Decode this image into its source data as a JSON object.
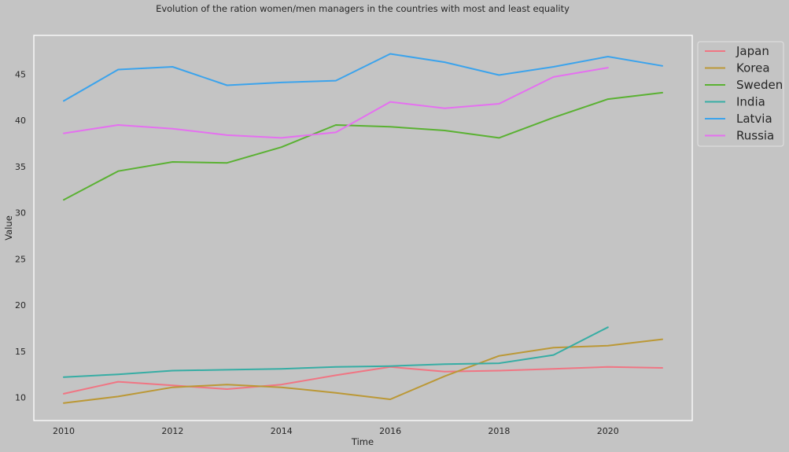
{
  "chart_data": {
    "type": "line",
    "title": "Evolution of the ration women/men managers in the countries with most and least equality",
    "xlabel": "Time",
    "ylabel": "Value",
    "xlim": [
      2009.45,
      2021.55
    ],
    "ylim": [
      7.5,
      49.2
    ],
    "xticks": [
      2010,
      2012,
      2014,
      2016,
      2018,
      2020
    ],
    "yticks": [
      10,
      15,
      20,
      25,
      30,
      35,
      40,
      45
    ],
    "grid": false,
    "legend_position": "outside-top-right",
    "background": "#c4c4c4",
    "series": [
      {
        "name": "Japan",
        "color": "#f07583",
        "x": [
          2010,
          2011,
          2012,
          2013,
          2014,
          2015,
          2016,
          2017,
          2018,
          2019,
          2020,
          2021
        ],
        "values": [
          10.4,
          11.7,
          11.3,
          10.9,
          11.4,
          12.4,
          13.3,
          12.8,
          12.9,
          13.1,
          13.3,
          13.2
        ]
      },
      {
        "name": "Korea",
        "color": "#bb9836",
        "x": [
          2010,
          2011,
          2012,
          2013,
          2014,
          2015,
          2016,
          2017,
          2018,
          2019,
          2020,
          2021
        ],
        "values": [
          9.4,
          10.1,
          11.1,
          11.4,
          11.1,
          10.5,
          9.8,
          12.3,
          14.5,
          15.4,
          15.6,
          16.3
        ]
      },
      {
        "name": "Sweden",
        "color": "#5ab132",
        "x": [
          2010,
          2011,
          2012,
          2013,
          2014,
          2015,
          2016,
          2017,
          2018,
          2019,
          2020,
          2021
        ],
        "values": [
          31.4,
          34.5,
          35.5,
          35.4,
          37.1,
          39.5,
          39.3,
          38.9,
          38.1,
          40.3,
          42.3,
          43.0
        ]
      },
      {
        "name": "India",
        "color": "#36ada4",
        "x": [
          2010,
          2011,
          2012,
          2013,
          2014,
          2015,
          2016,
          2017,
          2018,
          2019,
          2020
        ],
        "values": [
          12.2,
          12.5,
          12.9,
          13.0,
          13.1,
          13.3,
          13.4,
          13.6,
          13.7,
          14.6,
          17.6
        ]
      },
      {
        "name": "Latvia",
        "color": "#3ba3ec",
        "x": [
          2010,
          2011,
          2012,
          2013,
          2014,
          2015,
          2016,
          2017,
          2018,
          2019,
          2020,
          2021
        ],
        "values": [
          42.1,
          45.5,
          45.8,
          43.8,
          44.1,
          44.3,
          47.2,
          46.3,
          44.9,
          45.8,
          46.9,
          45.9
        ]
      },
      {
        "name": "Russia",
        "color": "#e56ff0",
        "x": [
          2010,
          2011,
          2012,
          2013,
          2014,
          2015,
          2016,
          2017,
          2018,
          2019,
          2020
        ],
        "values": [
          38.6,
          39.5,
          39.1,
          38.4,
          38.1,
          38.7,
          42.0,
          41.3,
          41.8,
          44.7,
          45.7
        ]
      }
    ]
  }
}
